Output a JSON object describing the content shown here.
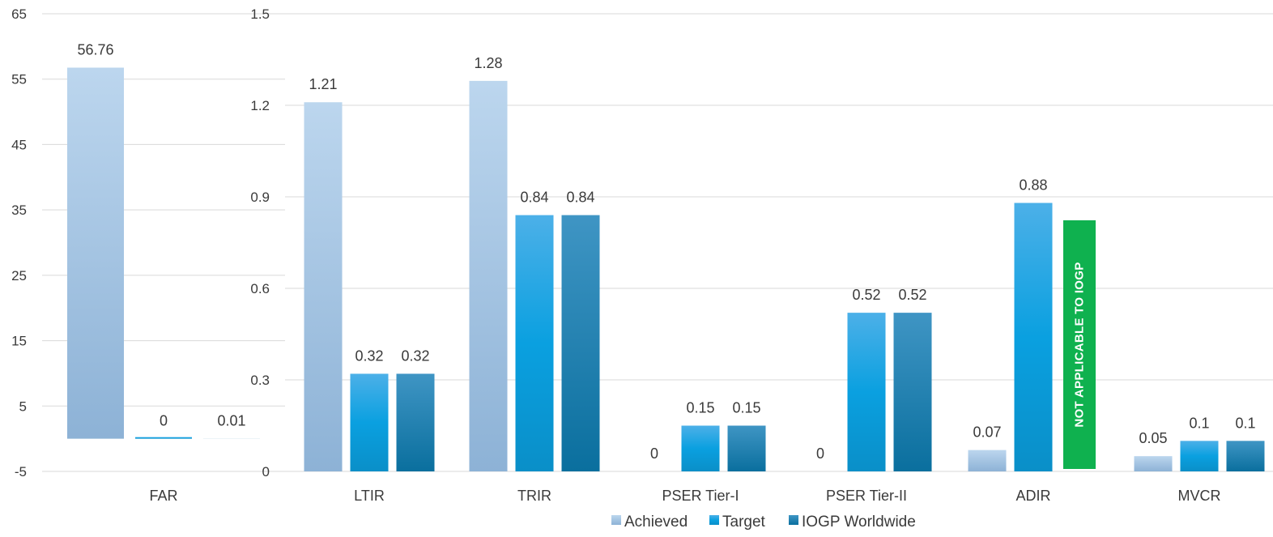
{
  "chart_data": {
    "type": "bar",
    "categories": [
      "FAR",
      "LTIR",
      "TRIR",
      "PSER Tier-I",
      "PSER Tier-II",
      "ADIR",
      "MVCR"
    ],
    "series": [
      {
        "name": "Achieved",
        "values": [
          56.76,
          1.21,
          1.28,
          0,
          0,
          0.07,
          0.05
        ]
      },
      {
        "name": "Target",
        "values": [
          0,
          0.32,
          0.84,
          0.15,
          0.52,
          0.88,
          0.1
        ]
      },
      {
        "name": "IOGP Worldwide",
        "values": [
          0.01,
          0.32,
          0.84,
          0.15,
          0.52,
          null,
          0.1
        ]
      }
    ],
    "value_labels": [
      [
        "56.76",
        "0",
        "0.01"
      ],
      [
        "1.21",
        "0.32",
        "0.32"
      ],
      [
        "1.28",
        "0.84",
        "0.84"
      ],
      [
        "0",
        "0.15",
        "0.15"
      ],
      [
        "0",
        "0.52",
        "0.52"
      ],
      [
        "0.07",
        "0.88",
        ""
      ],
      [
        "0.05",
        "0.1",
        "0.1"
      ]
    ],
    "primary_axis": {
      "applies_to": [
        "FAR"
      ],
      "ylim": [
        -5,
        65
      ],
      "ticks": [
        "65",
        "55",
        "45",
        "35",
        "25",
        "15",
        "5",
        "-5"
      ]
    },
    "secondary_axis": {
      "applies_to": [
        "LTIR",
        "TRIR",
        "PSER Tier-I",
        "PSER Tier-II",
        "ADIR",
        "MVCR"
      ],
      "ylim": [
        0,
        1.5
      ],
      "ticks": [
        "1.5",
        "1.2",
        "0.9",
        "0.6",
        "0.3",
        "0"
      ]
    },
    "annotation": "NOT APPLICABLE TO IOGP",
    "legend": {
      "position": "bottom",
      "entries": [
        "Achieved",
        "Target",
        "IOGP Worldwide"
      ]
    },
    "grid": true,
    "colors": {
      "achieved_top": "#bcd6ee",
      "achieved_bottom": "#8db2d6",
      "target_top": "#4cb0e8",
      "target_mid": "#0aa0e0",
      "target_bottom": "#0a8fc8",
      "iogp_top": "#3f95c4",
      "iogp_bottom": "#0a6f9e",
      "annotation_bg": "#0fb14f",
      "gridline": "#d9d9d9",
      "axis_text": "#3a3a3a"
    }
  }
}
